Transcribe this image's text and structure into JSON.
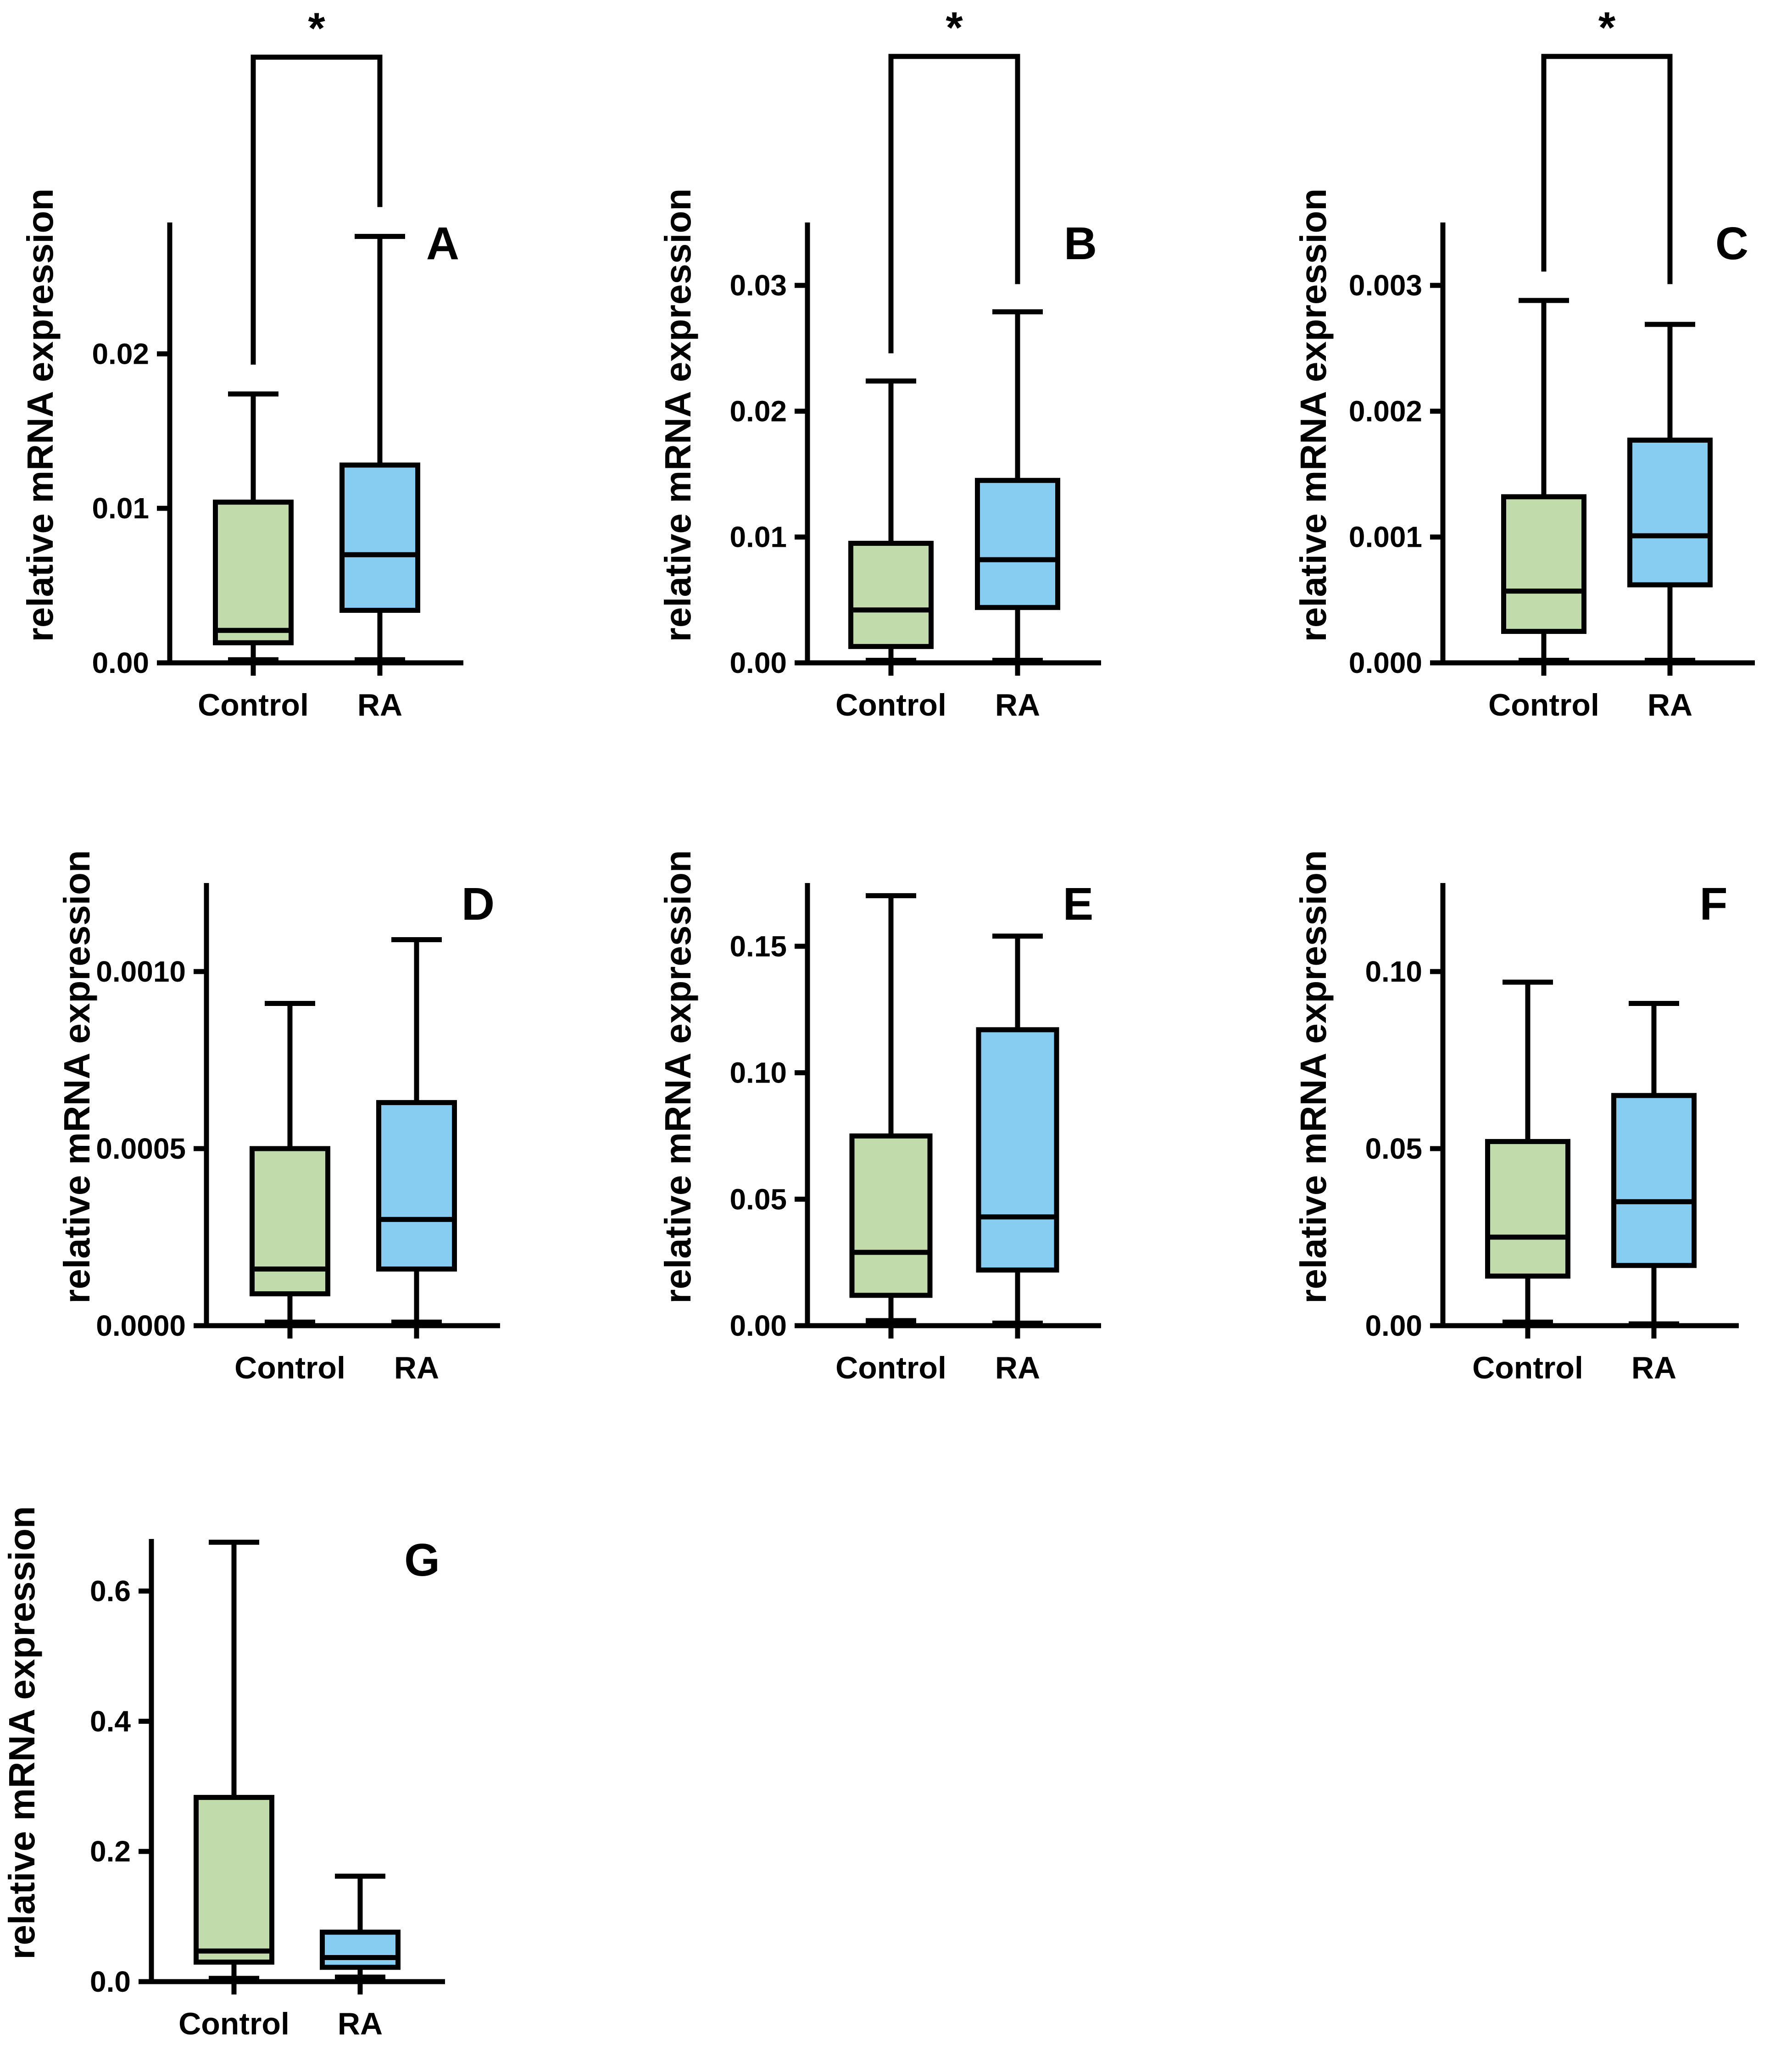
{
  "figure": {
    "colors": {
      "control_fill": "#c1dcaa",
      "ra_fill": "#87cdf2",
      "stroke": "#000000",
      "background": "#ffffff"
    }
  },
  "chart_data": [
    {
      "type": "boxplot",
      "panel_label": "A",
      "ylabel": "relative mRNA expression",
      "categories": [
        "Control",
        "RA"
      ],
      "ylim": [
        0,
        0.0285
      ],
      "yticks": [
        0.0,
        0.01,
        0.02
      ],
      "ytick_labels": [
        "0.00",
        "0.01",
        "0.02"
      ],
      "boxes": [
        {
          "name": "Control",
          "min": 0.0002,
          "q1": 0.0013,
          "median": 0.0021,
          "q3": 0.0104,
          "max": 0.0174,
          "fill": "#c1dcaa"
        },
        {
          "name": "RA",
          "min": 0.0002,
          "q1": 0.0034,
          "median": 0.007,
          "q3": 0.0128,
          "max": 0.0276,
          "fill": "#87cdf2"
        }
      ],
      "significance": {
        "label": "*",
        "left_max": 0.0193,
        "right_max": 0.0295,
        "bracket_y": 0.0392
      }
    },
    {
      "type": "boxplot",
      "panel_label": "B",
      "ylabel": "relative mRNA expression",
      "categories": [
        "Control",
        "RA"
      ],
      "ylim": [
        0,
        0.035
      ],
      "yticks": [
        0.0,
        0.01,
        0.02,
        0.03
      ],
      "ytick_labels": [
        "0.00",
        "0.01",
        "0.02",
        "0.03"
      ],
      "boxes": [
        {
          "name": "Control",
          "min": 0.0002,
          "q1": 0.0013,
          "median": 0.0042,
          "q3": 0.0095,
          "max": 0.0224,
          "fill": "#c1dcaa"
        },
        {
          "name": "RA",
          "min": 0.0002,
          "q1": 0.0044,
          "median": 0.0082,
          "q3": 0.0145,
          "max": 0.0279,
          "fill": "#87cdf2"
        }
      ],
      "significance": {
        "label": "*",
        "left_max": 0.0246,
        "right_max": 0.0301,
        "bracket_y": 0.0482
      }
    },
    {
      "type": "boxplot",
      "panel_label": "C",
      "ylabel": "relative mRNA expression",
      "categories": [
        "Control",
        "RA"
      ],
      "ylim": [
        0,
        0.0035
      ],
      "yticks": [
        0.0,
        0.001,
        0.002,
        0.003
      ],
      "ytick_labels": [
        "0.000",
        "0.001",
        "0.002",
        "0.003"
      ],
      "boxes": [
        {
          "name": "Control",
          "min": 2e-05,
          "q1": 0.00025,
          "median": 0.00057,
          "q3": 0.00132,
          "max": 0.00288,
          "fill": "#c1dcaa"
        },
        {
          "name": "RA",
          "min": 2e-05,
          "q1": 0.00062,
          "median": 0.00101,
          "q3": 0.00177,
          "max": 0.00269,
          "fill": "#87cdf2"
        }
      ],
      "significance": {
        "label": "*",
        "left_max": 0.00311,
        "right_max": 0.00301,
        "bracket_y": 0.00482
      }
    },
    {
      "type": "boxplot",
      "panel_label": "D",
      "ylabel": "relative mRNA expression",
      "categories": [
        "Control",
        "RA"
      ],
      "ylim": [
        0,
        0.00125
      ],
      "yticks": [
        0.0,
        0.0005,
        0.001
      ],
      "ytick_labels": [
        "0.0000",
        "0.0005",
        "0.0010"
      ],
      "boxes": [
        {
          "name": "Control",
          "min": 1e-05,
          "q1": 9e-05,
          "median": 0.00016,
          "q3": 0.0005,
          "max": 0.00091,
          "fill": "#c1dcaa"
        },
        {
          "name": "RA",
          "min": 1e-05,
          "q1": 0.00016,
          "median": 0.0003,
          "q3": 0.00063,
          "max": 0.00109,
          "fill": "#87cdf2"
        }
      ]
    },
    {
      "type": "boxplot",
      "panel_label": "E",
      "ylabel": "relative mRNA expression",
      "categories": [
        "Control",
        "RA"
      ],
      "ylim": [
        0,
        0.175
      ],
      "yticks": [
        0.0,
        0.05,
        0.1,
        0.15
      ],
      "ytick_labels": [
        "0.00",
        "0.05",
        "0.10",
        "0.15"
      ],
      "boxes": [
        {
          "name": "Control",
          "min": 0.002,
          "q1": 0.012,
          "median": 0.029,
          "q3": 0.075,
          "max": 0.17,
          "fill": "#c1dcaa"
        },
        {
          "name": "RA",
          "min": 0.001,
          "q1": 0.022,
          "median": 0.043,
          "q3": 0.117,
          "max": 0.154,
          "fill": "#87cdf2"
        }
      ]
    },
    {
      "type": "boxplot",
      "panel_label": "F",
      "ylabel": "relative mRNA expression",
      "categories": [
        "Control",
        "RA"
      ],
      "ylim": [
        0,
        0.125
      ],
      "yticks": [
        0.0,
        0.05,
        0.1
      ],
      "ytick_labels": [
        "0.00",
        "0.05",
        "0.10"
      ],
      "boxes": [
        {
          "name": "Control",
          "min": 0.001,
          "q1": 0.014,
          "median": 0.025,
          "q3": 0.052,
          "max": 0.097,
          "fill": "#c1dcaa"
        },
        {
          "name": "RA",
          "min": 0.0005,
          "q1": 0.017,
          "median": 0.035,
          "q3": 0.065,
          "max": 0.091,
          "fill": "#87cdf2"
        }
      ]
    },
    {
      "type": "boxplot",
      "panel_label": "G",
      "ylabel": "relative mRNA expression",
      "categories": [
        "Control",
        "RA"
      ],
      "ylim": [
        0,
        0.68
      ],
      "yticks": [
        0.0,
        0.2,
        0.4,
        0.6
      ],
      "ytick_labels": [
        "0.0",
        "0.2",
        "0.4",
        "0.6"
      ],
      "boxes": [
        {
          "name": "Control",
          "min": 0.005,
          "q1": 0.03,
          "median": 0.047,
          "q3": 0.283,
          "max": 0.675,
          "fill": "#c1dcaa"
        },
        {
          "name": "RA",
          "min": 0.007,
          "q1": 0.022,
          "median": 0.037,
          "q3": 0.076,
          "max": 0.162,
          "fill": "#87cdf2"
        }
      ]
    }
  ]
}
